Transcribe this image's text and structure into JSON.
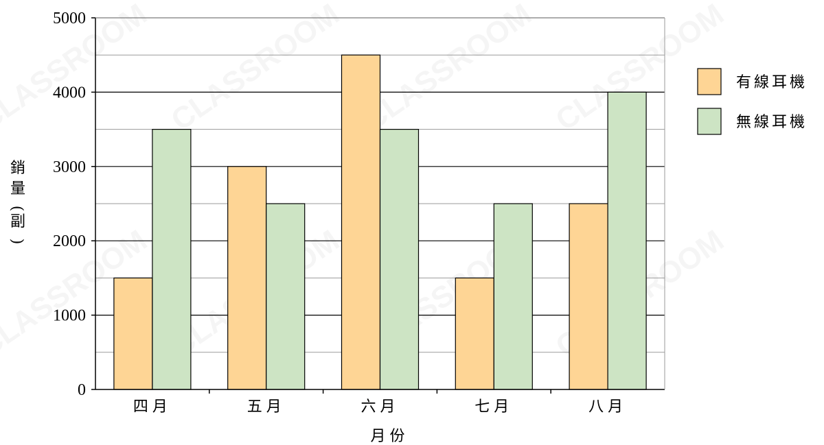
{
  "watermark": "CLASSROOM",
  "chart_data": {
    "type": "bar",
    "categories": [
      "四月",
      "五月",
      "六月",
      "七月",
      "八月"
    ],
    "series": [
      {
        "name": "有線耳機",
        "values": [
          1500,
          3000,
          4500,
          1500,
          2500
        ],
        "color": "#FED595"
      },
      {
        "name": "無線耳機",
        "values": [
          3500,
          2500,
          3500,
          2500,
          4000
        ],
        "color": "#CDE4C4"
      }
    ],
    "xlabel": "月份",
    "ylabel": "銷量(副)",
    "ylim": [
      0,
      5000
    ],
    "yticks": [
      0,
      1000,
      2000,
      3000,
      4000,
      5000
    ],
    "grid": true,
    "minor_gridlines": true,
    "legend_position": "right"
  }
}
